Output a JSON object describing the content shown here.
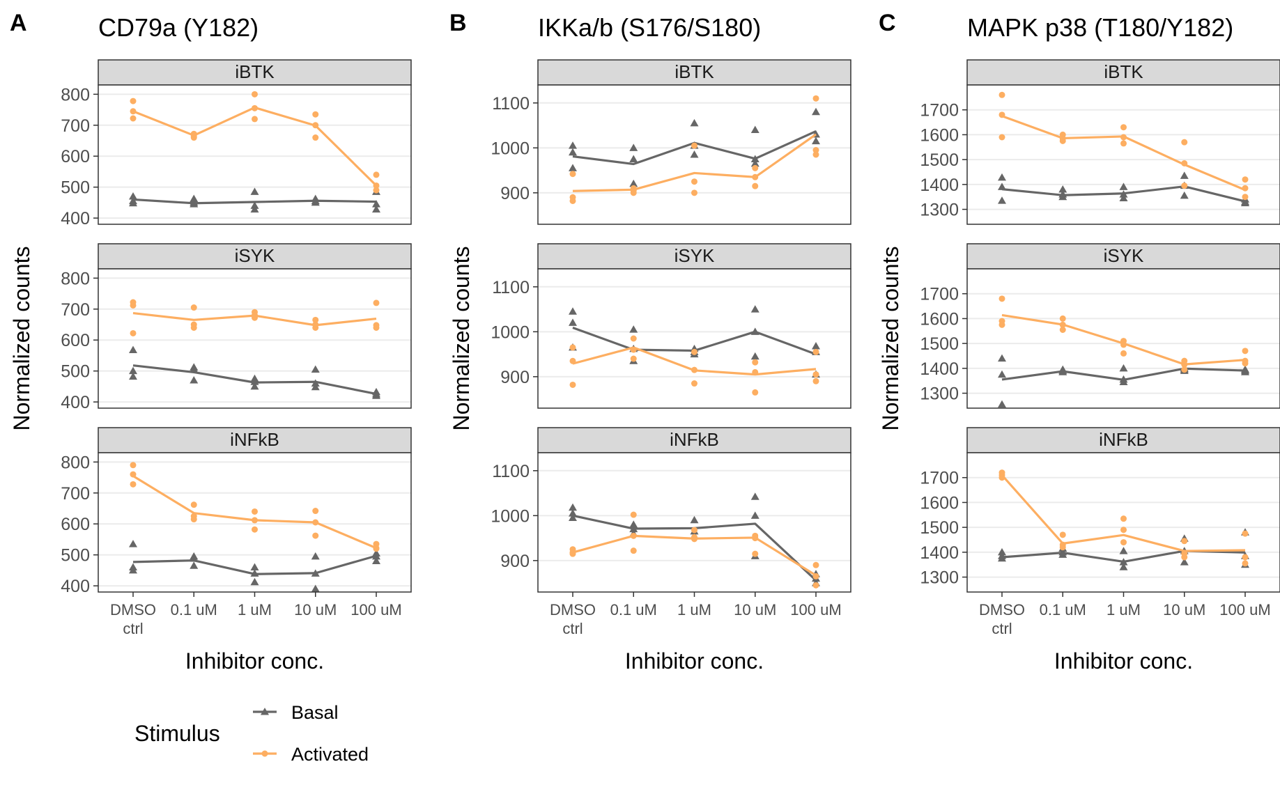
{
  "figure": {
    "x_axis_label": "Inhibitor conc.",
    "y_axis_label": "Normalized counts",
    "strip_labels": [
      "iBTK",
      "iSYK",
      "iNFkB"
    ]
  },
  "legend": {
    "title": "Stimulus",
    "items": [
      {
        "label": "Basal",
        "color": "#666666",
        "marker": "triangle"
      },
      {
        "label": "Activated",
        "color": "#fdae61",
        "marker": "circle"
      }
    ]
  },
  "colors": {
    "basal": "#666666",
    "activated": "#fdae61",
    "strip_bg": "#d9d9d9",
    "grid": "#ebebeb"
  },
  "chart_data": [
    {
      "type": "line",
      "letter": "A",
      "title": "CD79a (Y182)",
      "categories": [
        "DMSO ctrl",
        "0.1 uM",
        "1 uM",
        "10 uM",
        "100 uM"
      ],
      "category_lines": [
        [
          "DMSO",
          "ctrl"
        ],
        [
          "0.1 uM"
        ],
        [
          "1 uM"
        ],
        [
          "10 uM"
        ],
        [
          "100 uM"
        ]
      ],
      "yticks": [
        400,
        500,
        600,
        700,
        800
      ],
      "ylim": [
        380,
        830
      ],
      "facets": [
        {
          "label": "iBTK",
          "basal_mean": [
            460,
            448,
            452,
            456,
            453
          ],
          "activated_mean": [
            745,
            667,
            757,
            699,
            505
          ],
          "basal_points": [
            [
              470,
              455,
              448
            ],
            [
              462,
              450,
              445
            ],
            [
              485,
              440,
              428
            ],
            [
              462,
              455,
              450
            ],
            [
              485,
              428,
              445
            ]
          ],
          "activated_points": [
            [
              778,
              745,
              722
            ],
            [
              672,
              665,
              660
            ],
            [
              800,
              755,
              720
            ],
            [
              735,
              700,
              660
            ],
            [
              540,
              505,
              490
            ]
          ]
        },
        {
          "label": "iSYK",
          "basal_mean": [
            518,
            496,
            463,
            465,
            426
          ],
          "activated_mean": [
            687,
            665,
            679,
            648,
            669
          ],
          "basal_points": [
            [
              568,
              500,
              482
            ],
            [
              512,
              505,
              470
            ],
            [
              475,
              465,
              450
            ],
            [
              505,
              460,
              448
            ],
            [
              432,
              425,
              420
            ]
          ],
          "activated_points": [
            [
              722,
              712,
              622
            ],
            [
              705,
              650,
              640
            ],
            [
              690,
              680,
              672
            ],
            [
              665,
              650,
              640
            ],
            [
              720,
              648,
              640
            ]
          ]
        },
        {
          "label": "iNFkB",
          "basal_mean": [
            477,
            482,
            438,
            441,
            497
          ],
          "activated_mean": [
            755,
            635,
            612,
            605,
            522
          ],
          "basal_points": [
            [
              535,
              460,
              450
            ],
            [
              495,
              488,
              465
            ],
            [
              460,
              440,
              412
            ],
            [
              495,
              440,
              390
            ],
            [
              505,
              495,
              480
            ]
          ],
          "activated_points": [
            [
              790,
              760,
              728
            ],
            [
              662,
              625,
              615
            ],
            [
              640,
              612,
              582
            ],
            [
              642,
              605,
              562
            ],
            [
              535,
              522,
              520
            ]
          ]
        }
      ]
    },
    {
      "type": "line",
      "letter": "B",
      "title": "IKKa/b (S176/S180)",
      "categories": [
        "DMSO ctrl",
        "0.1 uM",
        "1 uM",
        "10 uM",
        "100 uM"
      ],
      "category_lines": [
        [
          "DMSO",
          "ctrl"
        ],
        [
          "0.1 uM"
        ],
        [
          "1 uM"
        ],
        [
          "10 uM"
        ],
        [
          "100 uM"
        ]
      ],
      "yticks": [
        900,
        1000,
        1100
      ],
      "ylim": [
        830,
        1140
      ],
      "facets": [
        {
          "label": "iBTK",
          "basal_mean": [
            981,
            964,
            1011,
            976,
            1037
          ],
          "activated_mean": [
            904,
            907,
            944,
            935,
            1030
          ],
          "basal_points": [
            [
              1005,
              990,
              955
            ],
            [
              1000,
              975,
              920
            ],
            [
              1055,
              1005,
              985
            ],
            [
              1040,
              975,
              965
            ],
            [
              1080,
              1030,
              1015
            ]
          ],
          "activated_points": [
            [
              942,
              890,
              882
            ],
            [
              910,
              905,
              900
            ],
            [
              1005,
              925,
              900
            ],
            [
              955,
              935,
              915
            ],
            [
              1110,
              995,
              985
            ]
          ]
        },
        {
          "label": "iSYK",
          "basal_mean": [
            1009,
            960,
            958,
            1000,
            950
          ],
          "activated_mean": [
            929,
            965,
            914,
            905,
            917
          ],
          "basal_points": [
            [
              1045,
              1020,
              965
            ],
            [
              1005,
              962,
              935
            ],
            [
              962,
              955,
              950
            ],
            [
              1050,
              1000,
              945
            ],
            [
              968,
              955,
              905
            ]
          ],
          "activated_points": [
            [
              965,
              935,
              882
            ],
            [
              985,
              960,
              940
            ],
            [
              955,
              915,
              885
            ],
            [
              932,
              910,
              865
            ],
            [
              955,
              905,
              890
            ]
          ]
        },
        {
          "label": "iNFkB",
          "basal_mean": [
            1000,
            971,
            972,
            982,
            856
          ],
          "activated_mean": [
            918,
            955,
            949,
            951,
            867
          ],
          "basal_points": [
            [
              1018,
              1005,
              995
            ],
            [
              980,
              970,
              960
            ],
            [
              990,
              965,
              955
            ],
            [
              1042,
              1000,
              910
            ],
            [
              870,
              860,
              850
            ]
          ],
          "activated_points": [
            [
              925,
              918,
              915
            ],
            [
              1002,
              955,
              922
            ],
            [
              968,
              952,
              948
            ],
            [
              955,
              950,
              915
            ],
            [
              890,
              865,
              845
            ]
          ]
        }
      ]
    },
    {
      "type": "line",
      "letter": "C",
      "title": "MAPK p38 (T180/Y182)",
      "categories": [
        "DMSO ctrl",
        "0.1 uM",
        "1 uM",
        "10 uM",
        "100 uM"
      ],
      "category_lines": [
        [
          "DMSO",
          "ctrl"
        ],
        [
          "0.1 uM"
        ],
        [
          "1 uM"
        ],
        [
          "10 uM"
        ],
        [
          "100 uM"
        ]
      ],
      "yticks": [
        1300,
        1400,
        1500,
        1600,
        1700
      ],
      "ylim": [
        1240,
        1800
      ],
      "facets": [
        {
          "label": "iBTK",
          "basal_mean": [
            1381,
            1357,
            1364,
            1392,
            1332
          ],
          "activated_mean": [
            1675,
            1586,
            1593,
            1480,
            1378
          ],
          "basal_points": [
            [
              1428,
              1390,
              1335
            ],
            [
              1380,
              1360,
              1350
            ],
            [
              1390,
              1360,
              1345
            ],
            [
              1435,
              1395,
              1355
            ],
            [
              1340,
              1330,
              1325
            ]
          ],
          "activated_points": [
            [
              1760,
              1680,
              1590
            ],
            [
              1600,
              1585,
              1575
            ],
            [
              1630,
              1590,
              1565
            ],
            [
              1570,
              1485,
              1395
            ],
            [
              1420,
              1385,
              1350
            ]
          ]
        },
        {
          "label": "iSYK",
          "basal_mean": [
            1355,
            1388,
            1354,
            1399,
            1391
          ],
          "activated_mean": [
            1614,
            1576,
            1500,
            1416,
            1434
          ],
          "basal_points": [
            [
              1440,
              1375,
              1255
            ],
            [
              1395,
              1390,
              1385
            ],
            [
              1400,
              1355,
              1345
            ],
            [
              1400,
              1395,
              1390
            ],
            [
              1395,
              1390,
              1385
            ]
          ],
          "activated_points": [
            [
              1680,
              1590,
              1575
            ],
            [
              1600,
              1575,
              1555
            ],
            [
              1510,
              1495,
              1460
            ],
            [
              1430,
              1415,
              1395
            ],
            [
              1470,
              1430,
              1420
            ]
          ]
        },
        {
          "label": "iNFkB",
          "basal_mean": [
            1380,
            1398,
            1362,
            1405,
            1399
          ],
          "activated_mean": [
            1710,
            1435,
            1469,
            1405,
            1408
          ],
          "basal_points": [
            [
              1400,
              1385,
              1375
            ],
            [
              1415,
              1400,
              1390
            ],
            [
              1405,
              1360,
              1340
            ],
            [
              1455,
              1405,
              1360
            ],
            [
              1480,
              1385,
              1350
            ]
          ],
          "activated_points": [
            [
              1720,
              1710,
              1700
            ],
            [
              1470,
              1430,
              1420
            ],
            [
              1535,
              1490,
              1440
            ],
            [
              1445,
              1395,
              1380
            ],
            [
              1475,
              1380,
              1355
            ]
          ]
        }
      ]
    }
  ]
}
